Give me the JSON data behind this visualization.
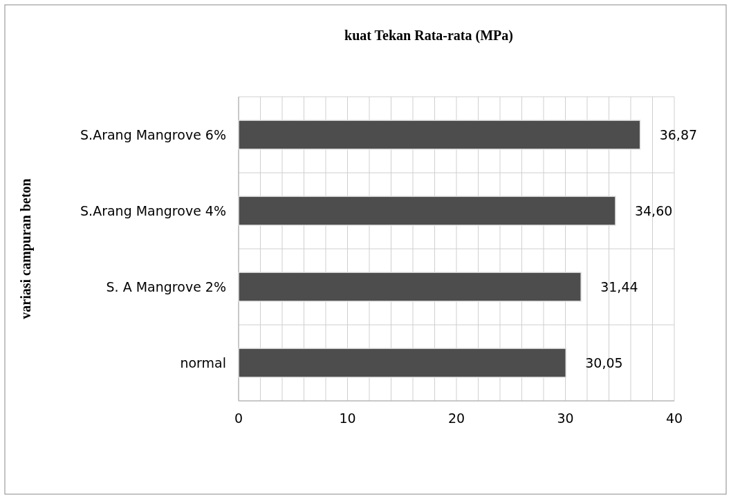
{
  "chart_data": {
    "type": "bar",
    "orientation": "horizontal",
    "title": "kuat Tekan Rata-rata (MPa)",
    "ylabel": "variasi campuran beton",
    "categories": [
      "S.Arang Mangrove 6%",
      "S.Arang Mangrove 4%",
      "S. A Mangrove 2%",
      "normal"
    ],
    "values": [
      36.87,
      34.6,
      31.44,
      30.05
    ],
    "value_labels": [
      "36,87",
      "34,60",
      "31,44",
      "30,05"
    ],
    "color": "#4d4d4d",
    "xlim": [
      0,
      40
    ],
    "xticks": [
      0,
      {
        "value": 2,
        "label": null
      },
      {
        "value": 4,
        "label": null
      },
      {
        "value": 6,
        "label": null
      },
      {
        "value": 8,
        "label": null
      },
      10,
      {
        "value": 12,
        "label": null
      },
      {
        "value": 14,
        "label": null
      },
      {
        "value": 16,
        "label": null
      },
      {
        "value": 18,
        "label": null
      },
      20,
      {
        "value": 22,
        "label": null
      },
      {
        "value": 24,
        "label": null
      },
      {
        "value": 26,
        "label": null
      },
      {
        "value": 28,
        "label": null
      },
      30,
      {
        "value": 32,
        "label": null
      },
      {
        "value": 34,
        "label": null
      },
      {
        "value": 36,
        "label": null
      },
      {
        "value": 38,
        "label": null
      },
      40
    ],
    "grid": true
  }
}
